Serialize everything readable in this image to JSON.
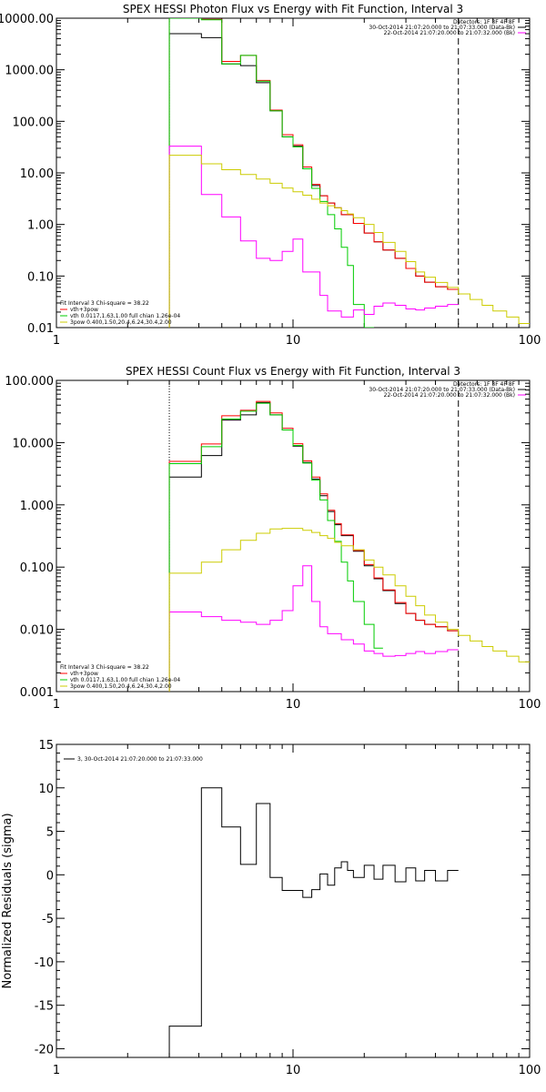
{
  "chart_data": [
    {
      "type": "line",
      "title": "SPEX HESSI Photon Flux vs Energy with Fit Function, Interval 3",
      "x_scale": "log",
      "y_scale": "log",
      "xlim": [
        1,
        100
      ],
      "ylim": [
        0.01,
        10000
      ],
      "x_tick_labels": [
        "1",
        "10",
        "100"
      ],
      "y_tick_labels": [
        "0.01",
        "0.10",
        "1.00",
        "10.00",
        "100.00",
        "1000.00",
        "10000.00"
      ],
      "x_ticks": [
        1,
        10,
        100
      ],
      "y_ticks": [
        0.01,
        0.1,
        1,
        10,
        100,
        1000,
        10000
      ],
      "vlines": [
        {
          "x": 3,
          "style": "dotted",
          "color": "#000000"
        },
        {
          "x": 50,
          "style": "dashed",
          "color": "#000000"
        }
      ],
      "legend_top_right": [
        {
          "text": "Detectors: 1F 3F 4F 8F",
          "color": null
        },
        {
          "text": "30-Oct-2014 21:07:20.000 to 21:07:33.000 (Data-Bk)",
          "color": "#000000"
        },
        {
          "text": "22-Oct-2014 21:07:20.000 to 21:07:32.000 (Bk)",
          "color": "#ff00ff"
        }
      ],
      "legend_bottom_left": [
        {
          "text": "Fit Interval 3   Chi-square = 38.22",
          "color": null
        },
        {
          "text": "vth+3pow",
          "color": "#ff0000"
        },
        {
          "text": "vth 0.0117,1.63,1.00   full chian 1.26e-04",
          "color": "#00cc00"
        },
        {
          "text": "3pow 0.400,1.50,20.4,6.24,30.4,2.00",
          "color": "#cccc00"
        }
      ],
      "series": [
        {
          "color": "#000000",
          "step": true,
          "x": [
            3,
            3.5,
            4.1,
            5,
            6,
            7,
            8,
            9,
            10,
            11,
            12,
            13,
            14,
            15,
            16,
            18,
            20,
            22,
            24,
            27,
            30,
            33,
            36,
            40,
            45,
            50
          ],
          "y": [
            5000,
            5000,
            4200,
            1300,
            1200,
            560,
            160,
            50,
            33,
            12,
            5.7,
            3.6,
            2.6,
            2.1,
            1.55,
            1.05,
            0.68,
            0.46,
            0.32,
            0.22,
            0.14,
            0.1,
            0.076,
            0.062,
            0.055,
            0.055
          ]
        },
        {
          "color": "#ff0000",
          "step": true,
          "x": [
            3,
            3.5,
            4.1,
            5,
            6,
            7,
            8,
            9,
            10,
            11,
            12,
            13,
            14,
            15,
            16,
            18,
            20,
            22,
            24,
            27,
            30,
            33,
            36,
            40,
            45,
            50
          ],
          "y": [
            10000,
            10000,
            9500,
            1450,
            1900,
            620,
            165,
            55,
            35,
            13,
            6,
            3.6,
            2.6,
            2.1,
            1.55,
            1.05,
            0.68,
            0.46,
            0.32,
            0.22,
            0.14,
            0.1,
            0.076,
            0.062,
            0.055,
            0.055
          ]
        },
        {
          "color": "#00cc00",
          "step": true,
          "x": [
            3,
            3.5,
            4.1,
            5,
            6,
            7,
            8,
            9,
            10,
            11,
            12,
            13,
            14,
            15,
            16,
            17,
            18,
            20,
            22
          ],
          "y": [
            10000,
            10000,
            9300,
            1300,
            1900,
            600,
            160,
            50,
            32,
            12,
            5,
            2.8,
            1.55,
            0.82,
            0.36,
            0.16,
            0.028,
            0.009,
            0.009
          ]
        },
        {
          "color": "#ff00ff",
          "step": true,
          "x": [
            3,
            3.5,
            4.1,
            5,
            6,
            7,
            8,
            9,
            10,
            11,
            13,
            14,
            16,
            18,
            20,
            22,
            24,
            27,
            30,
            33,
            36,
            40,
            45,
            50
          ],
          "y": [
            33,
            33,
            3.8,
            1.4,
            0.48,
            0.22,
            0.2,
            0.3,
            0.52,
            0.12,
            0.042,
            0.021,
            0.016,
            0.022,
            0.018,
            0.026,
            0.03,
            0.027,
            0.023,
            0.022,
            0.024,
            0.026,
            0.028,
            0.028
          ]
        },
        {
          "color": "#cccc00",
          "step": true,
          "x": [
            3,
            3.5,
            4.1,
            5,
            6,
            7,
            8,
            9,
            10,
            11,
            12,
            13,
            14,
            15,
            16,
            17,
            18,
            20,
            22,
            24,
            27,
            30,
            33,
            36,
            40,
            45,
            50,
            56,
            63,
            70,
            80,
            90,
            100
          ],
          "y": [
            22,
            22,
            15,
            11.5,
            9.3,
            7.6,
            6.3,
            5.1,
            4.3,
            3.7,
            3.1,
            2.6,
            2.3,
            2.1,
            1.85,
            1.6,
            1.35,
            1.0,
            0.7,
            0.45,
            0.3,
            0.19,
            0.12,
            0.095,
            0.075,
            0.06,
            0.045,
            0.035,
            0.027,
            0.021,
            0.016,
            0.012,
            0.012
          ]
        }
      ]
    },
    {
      "type": "line",
      "title": "SPEX HESSI Count Flux vs Energy with Fit Function, Interval 3",
      "x_scale": "log",
      "y_scale": "log",
      "xlim": [
        1,
        100
      ],
      "ylim": [
        0.001,
        100
      ],
      "x_tick_labels": [
        "1",
        "10",
        "100"
      ],
      "y_tick_labels": [
        "0.001",
        "0.010",
        "0.100",
        "1.000",
        "10.000",
        "100.000"
      ],
      "x_ticks": [
        1,
        10,
        100
      ],
      "y_ticks": [
        0.001,
        0.01,
        0.1,
        1,
        10,
        100
      ],
      "vlines": [
        {
          "x": 3,
          "style": "dotted",
          "color": "#000000"
        },
        {
          "x": 50,
          "style": "dashed",
          "color": "#000000"
        }
      ],
      "legend_top_right": [
        {
          "text": "Detectors: 1F 3F 4F 8F",
          "color": null
        },
        {
          "text": "30-Oct-2014 21:07:20.000 to 21:07:33.000 (Data-Bk)",
          "color": "#000000"
        },
        {
          "text": "22-Oct-2014 21:07:20.000 to 21:07:32.000 (Bk)",
          "color": "#ff00ff"
        }
      ],
      "legend_bottom_left": [
        {
          "text": "Fit Interval 3   Chi-square = 38.22",
          "color": null
        },
        {
          "text": "vth+3pow",
          "color": "#ff0000"
        },
        {
          "text": "vth 0.0117,1.63,1.00   full chian 1.26e-04",
          "color": "#00cc00"
        },
        {
          "text": "3pow 0.400,1.50,20.4,6.24,30.4,2.00",
          "color": "#cccc00"
        }
      ],
      "series": [
        {
          "color": "#000000",
          "step": true,
          "x": [
            3,
            3.5,
            4.1,
            5,
            6,
            7,
            8,
            9,
            10,
            11,
            12,
            13,
            14,
            15,
            16,
            18,
            20,
            22,
            24,
            27,
            30,
            33,
            36,
            40,
            45,
            50
          ],
          "y": [
            2.8,
            2.8,
            6.2,
            23,
            28,
            44,
            28,
            16,
            8.8,
            4.8,
            2.6,
            1.4,
            0.78,
            0.48,
            0.32,
            0.18,
            0.105,
            0.065,
            0.042,
            0.026,
            0.018,
            0.014,
            0.012,
            0.011,
            0.0095,
            0.0095
          ]
        },
        {
          "color": "#ff0000",
          "step": true,
          "x": [
            3,
            3.5,
            4.1,
            5,
            6,
            7,
            8,
            9,
            10,
            11,
            12,
            13,
            14,
            15,
            16,
            18,
            20,
            22,
            24,
            27,
            30,
            33,
            36,
            40,
            45,
            50
          ],
          "y": [
            5,
            5,
            9.5,
            27,
            33,
            46,
            30,
            17,
            9.6,
            5.1,
            2.8,
            1.5,
            0.82,
            0.5,
            0.33,
            0.185,
            0.11,
            0.067,
            0.043,
            0.027,
            0.018,
            0.014,
            0.012,
            0.011,
            0.0095,
            0.0095
          ]
        },
        {
          "color": "#00cc00",
          "step": true,
          "x": [
            3,
            3.5,
            4.1,
            5,
            6,
            7,
            8,
            9,
            10,
            11,
            12,
            13,
            14,
            15,
            16,
            17,
            18,
            20,
            22,
            24
          ],
          "y": [
            4.6,
            4.6,
            8.6,
            24,
            32,
            43,
            28,
            16,
            9,
            4.7,
            2.5,
            1.2,
            0.56,
            0.26,
            0.12,
            0.06,
            0.028,
            0.012,
            0.005,
            0.001
          ]
        },
        {
          "color": "#ff00ff",
          "step": true,
          "x": [
            3,
            3.5,
            4.1,
            5,
            6,
            7,
            8,
            9,
            10,
            11,
            12,
            13,
            14,
            16,
            18,
            20,
            22,
            24,
            27,
            30,
            33,
            36,
            40,
            45,
            50
          ],
          "y": [
            0.019,
            0.019,
            0.016,
            0.014,
            0.013,
            0.012,
            0.014,
            0.02,
            0.05,
            0.105,
            0.028,
            0.011,
            0.0085,
            0.0068,
            0.0058,
            0.0045,
            0.0041,
            0.0037,
            0.0038,
            0.0041,
            0.0044,
            0.0041,
            0.0044,
            0.0047,
            0.0047
          ]
        },
        {
          "color": "#cccc00",
          "step": true,
          "x": [
            3,
            3.5,
            4.1,
            5,
            6,
            7,
            8,
            9,
            10,
            11,
            12,
            13,
            14,
            15,
            16,
            18,
            20,
            22,
            24,
            27,
            30,
            33,
            36,
            40,
            45,
            50,
            56,
            63,
            70,
            80,
            90,
            100
          ],
          "y": [
            0.08,
            0.08,
            0.12,
            0.19,
            0.27,
            0.35,
            0.41,
            0.42,
            0.42,
            0.39,
            0.36,
            0.32,
            0.29,
            0.25,
            0.22,
            0.19,
            0.13,
            0.1,
            0.075,
            0.05,
            0.034,
            0.024,
            0.017,
            0.013,
            0.01,
            0.008,
            0.0065,
            0.0053,
            0.0045,
            0.0037,
            0.003,
            0.003
          ]
        }
      ]
    },
    {
      "type": "line",
      "title": "",
      "x_scale": "log",
      "y_scale": "linear",
      "xlim": [
        1,
        100
      ],
      "ylim": [
        -21,
        15
      ],
      "ylabel": "Normalized Residuals (sigma)",
      "x_tick_labels": [
        "1",
        "10",
        "100"
      ],
      "y_tick_labels": [
        "15",
        "10",
        "5",
        "0",
        "-5",
        "-10",
        "-15",
        "-20"
      ],
      "x_ticks": [
        1,
        10,
        100
      ],
      "y_ticks": [
        15,
        10,
        5,
        0,
        -5,
        -10,
        -15,
        -20
      ],
      "legend_top_left": [
        {
          "text": "3, 30-Oct-2014 21:07:20.000 to 21:07:33.000",
          "color": "#000000"
        }
      ],
      "series": [
        {
          "color": "#000000",
          "step": true,
          "x": [
            3,
            3.5,
            4.1,
            5,
            6,
            7,
            8,
            9,
            10,
            11,
            12,
            13,
            14,
            15,
            16,
            17,
            18,
            20,
            22,
            24,
            27,
            30,
            33,
            36,
            40,
            45,
            50
          ],
          "y": [
            -17.4,
            -17.4,
            10,
            5.5,
            1.2,
            8.2,
            -0.3,
            -1.8,
            -1.8,
            -2.6,
            -1.7,
            0.1,
            -1.2,
            0.8,
            1.5,
            0.5,
            -0.3,
            1.1,
            -0.5,
            1.1,
            -0.8,
            0.8,
            -0.7,
            0.5,
            -0.7,
            0.5,
            0.5
          ]
        }
      ]
    }
  ]
}
